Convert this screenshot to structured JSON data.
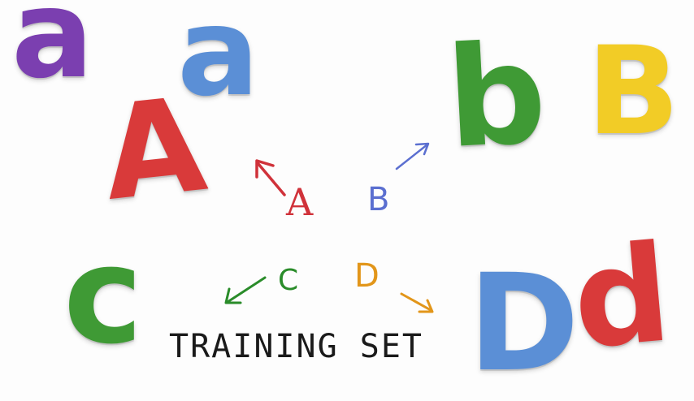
{
  "magnets": {
    "a_purple": {
      "text": "a",
      "color": "#7b3fb0"
    },
    "a_blue": {
      "text": "a",
      "color": "#5b8fd6"
    },
    "A_red": {
      "text": "A",
      "color": "#d93a3a"
    },
    "b_green": {
      "text": "b",
      "color": "#3f9a35"
    },
    "B_yellow": {
      "text": "B",
      "color": "#f2cc26"
    },
    "c_green": {
      "text": "c",
      "color": "#3f9a35"
    },
    "D_blue": {
      "text": "D",
      "color": "#5b8fd6"
    },
    "d_red": {
      "text": "d",
      "color": "#d93a3a"
    }
  },
  "notes": {
    "A": {
      "text": "A",
      "color": "#d0323a"
    },
    "B": {
      "text": "B",
      "color": "#5b6fd0"
    },
    "C": {
      "text": "C",
      "color": "#2a8c2a"
    },
    "D": {
      "text": "D",
      "color": "#e2961a"
    }
  },
  "caption": "TRAINING SET"
}
